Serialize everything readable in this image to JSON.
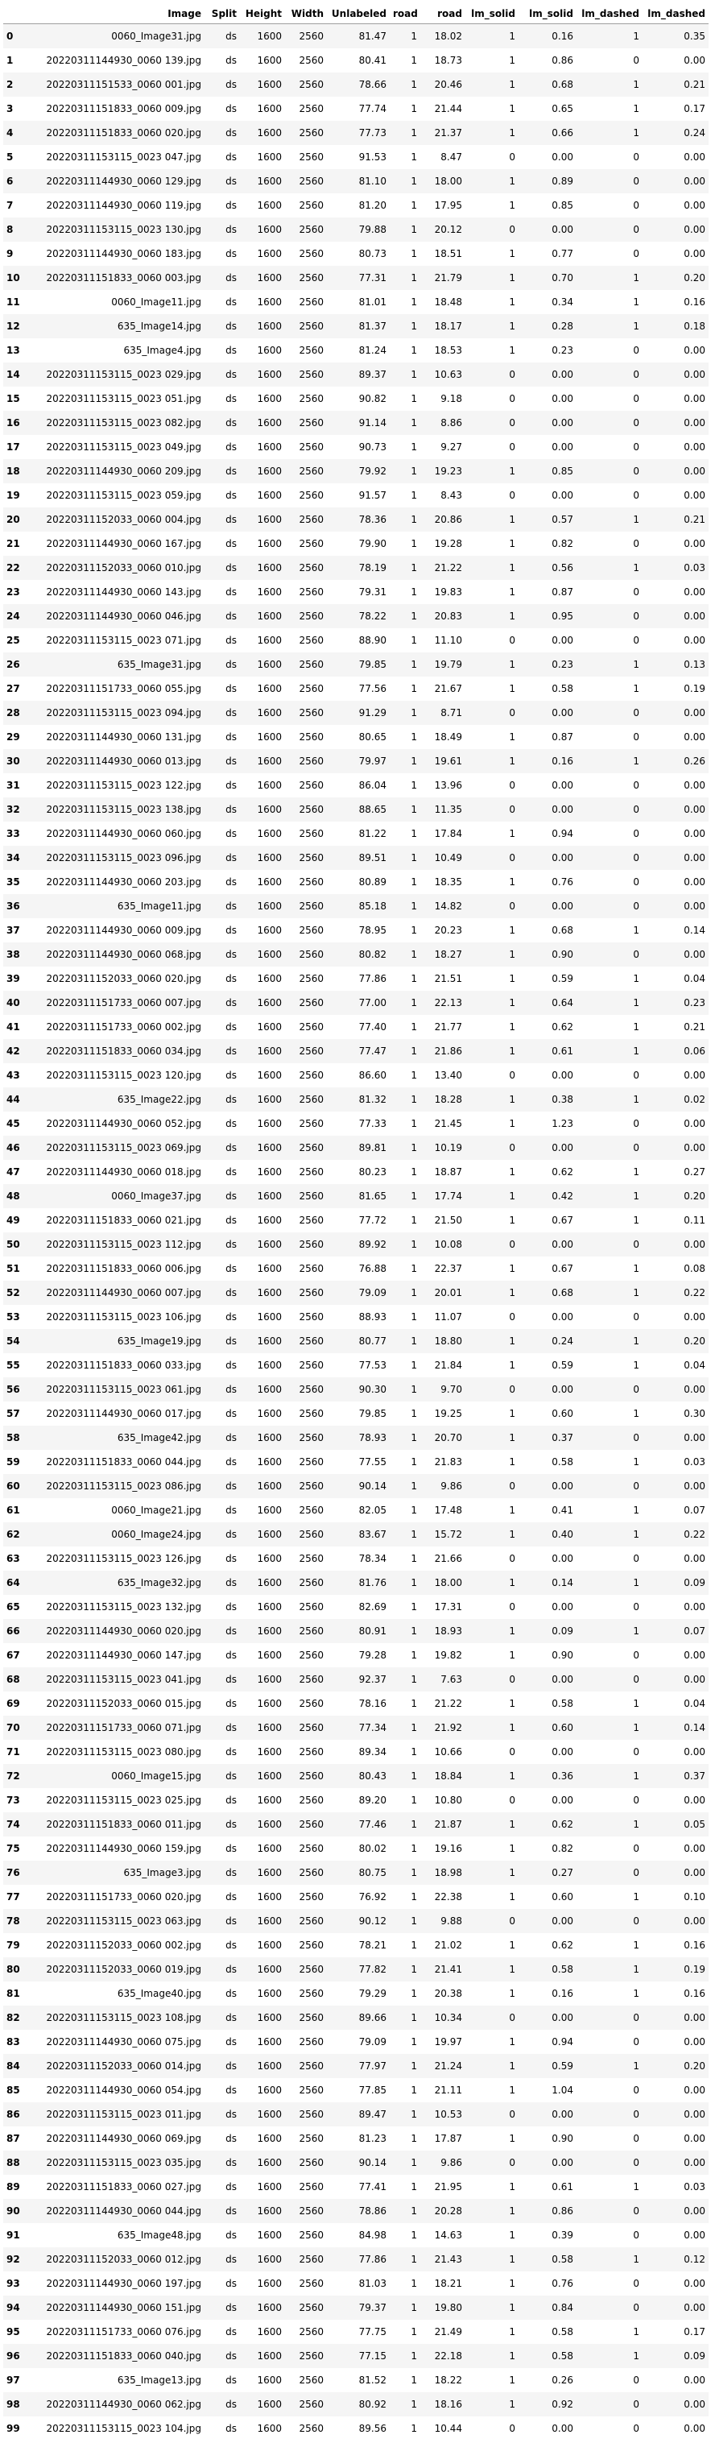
{
  "columns": [
    "",
    "Image",
    "Split",
    "Height",
    "Width",
    "Unlabeled",
    "road",
    "road",
    "lm_solid",
    "lm_solid",
    "lm_dashed",
    "lm_dashed"
  ],
  "rows": [
    [
      "0",
      "0060_Image31.jpg",
      "ds",
      "1600",
      "2560",
      "81.47",
      "1",
      "18.02",
      "1",
      "0.16",
      "1",
      "0.35"
    ],
    [
      "1",
      "20220311144930_0060 139.jpg",
      "ds",
      "1600",
      "2560",
      "80.41",
      "1",
      "18.73",
      "1",
      "0.86",
      "0",
      "0.00"
    ],
    [
      "2",
      "20220311151533_0060 001.jpg",
      "ds",
      "1600",
      "2560",
      "78.66",
      "1",
      "20.46",
      "1",
      "0.68",
      "1",
      "0.21"
    ],
    [
      "3",
      "20220311151833_0060 009.jpg",
      "ds",
      "1600",
      "2560",
      "77.74",
      "1",
      "21.44",
      "1",
      "0.65",
      "1",
      "0.17"
    ],
    [
      "4",
      "20220311151833_0060 020.jpg",
      "ds",
      "1600",
      "2560",
      "77.73",
      "1",
      "21.37",
      "1",
      "0.66",
      "1",
      "0.24"
    ],
    [
      "5",
      "20220311153115_0023 047.jpg",
      "ds",
      "1600",
      "2560",
      "91.53",
      "1",
      "8.47",
      "0",
      "0.00",
      "0",
      "0.00"
    ],
    [
      "6",
      "20220311144930_0060 129.jpg",
      "ds",
      "1600",
      "2560",
      "81.10",
      "1",
      "18.00",
      "1",
      "0.89",
      "0",
      "0.00"
    ],
    [
      "7",
      "20220311144930_0060 119.jpg",
      "ds",
      "1600",
      "2560",
      "81.20",
      "1",
      "17.95",
      "1",
      "0.85",
      "0",
      "0.00"
    ],
    [
      "8",
      "20220311153115_0023 130.jpg",
      "ds",
      "1600",
      "2560",
      "79.88",
      "1",
      "20.12",
      "0",
      "0.00",
      "0",
      "0.00"
    ],
    [
      "9",
      "20220311144930_0060 183.jpg",
      "ds",
      "1600",
      "2560",
      "80.73",
      "1",
      "18.51",
      "1",
      "0.77",
      "0",
      "0.00"
    ],
    [
      "10",
      "20220311151833_0060 003.jpg",
      "ds",
      "1600",
      "2560",
      "77.31",
      "1",
      "21.79",
      "1",
      "0.70",
      "1",
      "0.20"
    ],
    [
      "11",
      "0060_Image11.jpg",
      "ds",
      "1600",
      "2560",
      "81.01",
      "1",
      "18.48",
      "1",
      "0.34",
      "1",
      "0.16"
    ],
    [
      "12",
      "635_Image14.jpg",
      "ds",
      "1600",
      "2560",
      "81.37",
      "1",
      "18.17",
      "1",
      "0.28",
      "1",
      "0.18"
    ],
    [
      "13",
      "635_Image4.jpg",
      "ds",
      "1600",
      "2560",
      "81.24",
      "1",
      "18.53",
      "1",
      "0.23",
      "0",
      "0.00"
    ],
    [
      "14",
      "20220311153115_0023 029.jpg",
      "ds",
      "1600",
      "2560",
      "89.37",
      "1",
      "10.63",
      "0",
      "0.00",
      "0",
      "0.00"
    ],
    [
      "15",
      "20220311153115_0023 051.jpg",
      "ds",
      "1600",
      "2560",
      "90.82",
      "1",
      "9.18",
      "0",
      "0.00",
      "0",
      "0.00"
    ],
    [
      "16",
      "20220311153115_0023 082.jpg",
      "ds",
      "1600",
      "2560",
      "91.14",
      "1",
      "8.86",
      "0",
      "0.00",
      "0",
      "0.00"
    ],
    [
      "17",
      "20220311153115_0023 049.jpg",
      "ds",
      "1600",
      "2560",
      "90.73",
      "1",
      "9.27",
      "0",
      "0.00",
      "0",
      "0.00"
    ],
    [
      "18",
      "20220311144930_0060 209.jpg",
      "ds",
      "1600",
      "2560",
      "79.92",
      "1",
      "19.23",
      "1",
      "0.85",
      "0",
      "0.00"
    ],
    [
      "19",
      "20220311153115_0023 059.jpg",
      "ds",
      "1600",
      "2560",
      "91.57",
      "1",
      "8.43",
      "0",
      "0.00",
      "0",
      "0.00"
    ],
    [
      "20",
      "20220311152033_0060 004.jpg",
      "ds",
      "1600",
      "2560",
      "78.36",
      "1",
      "20.86",
      "1",
      "0.57",
      "1",
      "0.21"
    ],
    [
      "21",
      "20220311144930_0060 167.jpg",
      "ds",
      "1600",
      "2560",
      "79.90",
      "1",
      "19.28",
      "1",
      "0.82",
      "0",
      "0.00"
    ],
    [
      "22",
      "20220311152033_0060 010.jpg",
      "ds",
      "1600",
      "2560",
      "78.19",
      "1",
      "21.22",
      "1",
      "0.56",
      "1",
      "0.03"
    ],
    [
      "23",
      "20220311144930_0060 143.jpg",
      "ds",
      "1600",
      "2560",
      "79.31",
      "1",
      "19.83",
      "1",
      "0.87",
      "0",
      "0.00"
    ],
    [
      "24",
      "20220311144930_0060 046.jpg",
      "ds",
      "1600",
      "2560",
      "78.22",
      "1",
      "20.83",
      "1",
      "0.95",
      "0",
      "0.00"
    ],
    [
      "25",
      "20220311153115_0023 071.jpg",
      "ds",
      "1600",
      "2560",
      "88.90",
      "1",
      "11.10",
      "0",
      "0.00",
      "0",
      "0.00"
    ],
    [
      "26",
      "635_Image31.jpg",
      "ds",
      "1600",
      "2560",
      "79.85",
      "1",
      "19.79",
      "1",
      "0.23",
      "1",
      "0.13"
    ],
    [
      "27",
      "20220311151733_0060 055.jpg",
      "ds",
      "1600",
      "2560",
      "77.56",
      "1",
      "21.67",
      "1",
      "0.58",
      "1",
      "0.19"
    ],
    [
      "28",
      "20220311153115_0023 094.jpg",
      "ds",
      "1600",
      "2560",
      "91.29",
      "1",
      "8.71",
      "0",
      "0.00",
      "0",
      "0.00"
    ],
    [
      "29",
      "20220311144930_0060 131.jpg",
      "ds",
      "1600",
      "2560",
      "80.65",
      "1",
      "18.49",
      "1",
      "0.87",
      "0",
      "0.00"
    ],
    [
      "30",
      "20220311144930_0060 013.jpg",
      "ds",
      "1600",
      "2560",
      "79.97",
      "1",
      "19.61",
      "1",
      "0.16",
      "1",
      "0.26"
    ],
    [
      "31",
      "20220311153115_0023 122.jpg",
      "ds",
      "1600",
      "2560",
      "86.04",
      "1",
      "13.96",
      "0",
      "0.00",
      "0",
      "0.00"
    ],
    [
      "32",
      "20220311153115_0023 138.jpg",
      "ds",
      "1600",
      "2560",
      "88.65",
      "1",
      "11.35",
      "0",
      "0.00",
      "0",
      "0.00"
    ],
    [
      "33",
      "20220311144930_0060 060.jpg",
      "ds",
      "1600",
      "2560",
      "81.22",
      "1",
      "17.84",
      "1",
      "0.94",
      "0",
      "0.00"
    ],
    [
      "34",
      "20220311153115_0023 096.jpg",
      "ds",
      "1600",
      "2560",
      "89.51",
      "1",
      "10.49",
      "0",
      "0.00",
      "0",
      "0.00"
    ],
    [
      "35",
      "20220311144930_0060 203.jpg",
      "ds",
      "1600",
      "2560",
      "80.89",
      "1",
      "18.35",
      "1",
      "0.76",
      "0",
      "0.00"
    ],
    [
      "36",
      "635_Image11.jpg",
      "ds",
      "1600",
      "2560",
      "85.18",
      "1",
      "14.82",
      "0",
      "0.00",
      "0",
      "0.00"
    ],
    [
      "37",
      "20220311144930_0060 009.jpg",
      "ds",
      "1600",
      "2560",
      "78.95",
      "1",
      "20.23",
      "1",
      "0.68",
      "1",
      "0.14"
    ],
    [
      "38",
      "20220311144930_0060 068.jpg",
      "ds",
      "1600",
      "2560",
      "80.82",
      "1",
      "18.27",
      "1",
      "0.90",
      "0",
      "0.00"
    ],
    [
      "39",
      "20220311152033_0060 020.jpg",
      "ds",
      "1600",
      "2560",
      "77.86",
      "1",
      "21.51",
      "1",
      "0.59",
      "1",
      "0.04"
    ],
    [
      "40",
      "20220311151733_0060 007.jpg",
      "ds",
      "1600",
      "2560",
      "77.00",
      "1",
      "22.13",
      "1",
      "0.64",
      "1",
      "0.23"
    ],
    [
      "41",
      "20220311151733_0060 002.jpg",
      "ds",
      "1600",
      "2560",
      "77.40",
      "1",
      "21.77",
      "1",
      "0.62",
      "1",
      "0.21"
    ],
    [
      "42",
      "20220311151833_0060 034.jpg",
      "ds",
      "1600",
      "2560",
      "77.47",
      "1",
      "21.86",
      "1",
      "0.61",
      "1",
      "0.06"
    ],
    [
      "43",
      "20220311153115_0023 120.jpg",
      "ds",
      "1600",
      "2560",
      "86.60",
      "1",
      "13.40",
      "0",
      "0.00",
      "0",
      "0.00"
    ],
    [
      "44",
      "635_Image22.jpg",
      "ds",
      "1600",
      "2560",
      "81.32",
      "1",
      "18.28",
      "1",
      "0.38",
      "1",
      "0.02"
    ],
    [
      "45",
      "20220311144930_0060 052.jpg",
      "ds",
      "1600",
      "2560",
      "77.33",
      "1",
      "21.45",
      "1",
      "1.23",
      "0",
      "0.00"
    ],
    [
      "46",
      "20220311153115_0023 069.jpg",
      "ds",
      "1600",
      "2560",
      "89.81",
      "1",
      "10.19",
      "0",
      "0.00",
      "0",
      "0.00"
    ],
    [
      "47",
      "20220311144930_0060 018.jpg",
      "ds",
      "1600",
      "2560",
      "80.23",
      "1",
      "18.87",
      "1",
      "0.62",
      "1",
      "0.27"
    ],
    [
      "48",
      "0060_Image37.jpg",
      "ds",
      "1600",
      "2560",
      "81.65",
      "1",
      "17.74",
      "1",
      "0.42",
      "1",
      "0.20"
    ],
    [
      "49",
      "20220311151833_0060 021.jpg",
      "ds",
      "1600",
      "2560",
      "77.72",
      "1",
      "21.50",
      "1",
      "0.67",
      "1",
      "0.11"
    ],
    [
      "50",
      "20220311153115_0023 112.jpg",
      "ds",
      "1600",
      "2560",
      "89.92",
      "1",
      "10.08",
      "0",
      "0.00",
      "0",
      "0.00"
    ],
    [
      "51",
      "20220311151833_0060 006.jpg",
      "ds",
      "1600",
      "2560",
      "76.88",
      "1",
      "22.37",
      "1",
      "0.67",
      "1",
      "0.08"
    ],
    [
      "52",
      "20220311144930_0060 007.jpg",
      "ds",
      "1600",
      "2560",
      "79.09",
      "1",
      "20.01",
      "1",
      "0.68",
      "1",
      "0.22"
    ],
    [
      "53",
      "20220311153115_0023 106.jpg",
      "ds",
      "1600",
      "2560",
      "88.93",
      "1",
      "11.07",
      "0",
      "0.00",
      "0",
      "0.00"
    ],
    [
      "54",
      "635_Image19.jpg",
      "ds",
      "1600",
      "2560",
      "80.77",
      "1",
      "18.80",
      "1",
      "0.24",
      "1",
      "0.20"
    ],
    [
      "55",
      "20220311151833_0060 033.jpg",
      "ds",
      "1600",
      "2560",
      "77.53",
      "1",
      "21.84",
      "1",
      "0.59",
      "1",
      "0.04"
    ],
    [
      "56",
      "20220311153115_0023 061.jpg",
      "ds",
      "1600",
      "2560",
      "90.30",
      "1",
      "9.70",
      "0",
      "0.00",
      "0",
      "0.00"
    ],
    [
      "57",
      "20220311144930_0060 017.jpg",
      "ds",
      "1600",
      "2560",
      "79.85",
      "1",
      "19.25",
      "1",
      "0.60",
      "1",
      "0.30"
    ],
    [
      "58",
      "635_Image42.jpg",
      "ds",
      "1600",
      "2560",
      "78.93",
      "1",
      "20.70",
      "1",
      "0.37",
      "0",
      "0.00"
    ],
    [
      "59",
      "20220311151833_0060 044.jpg",
      "ds",
      "1600",
      "2560",
      "77.55",
      "1",
      "21.83",
      "1",
      "0.58",
      "1",
      "0.03"
    ],
    [
      "60",
      "20220311153115_0023 086.jpg",
      "ds",
      "1600",
      "2560",
      "90.14",
      "1",
      "9.86",
      "0",
      "0.00",
      "0",
      "0.00"
    ],
    [
      "61",
      "0060_Image21.jpg",
      "ds",
      "1600",
      "2560",
      "82.05",
      "1",
      "17.48",
      "1",
      "0.41",
      "1",
      "0.07"
    ],
    [
      "62",
      "0060_Image24.jpg",
      "ds",
      "1600",
      "2560",
      "83.67",
      "1",
      "15.72",
      "1",
      "0.40",
      "1",
      "0.22"
    ],
    [
      "63",
      "20220311153115_0023 126.jpg",
      "ds",
      "1600",
      "2560",
      "78.34",
      "1",
      "21.66",
      "0",
      "0.00",
      "0",
      "0.00"
    ],
    [
      "64",
      "635_Image32.jpg",
      "ds",
      "1600",
      "2560",
      "81.76",
      "1",
      "18.00",
      "1",
      "0.14",
      "1",
      "0.09"
    ],
    [
      "65",
      "20220311153115_0023 132.jpg",
      "ds",
      "1600",
      "2560",
      "82.69",
      "1",
      "17.31",
      "0",
      "0.00",
      "0",
      "0.00"
    ],
    [
      "66",
      "20220311144930_0060 020.jpg",
      "ds",
      "1600",
      "2560",
      "80.91",
      "1",
      "18.93",
      "1",
      "0.09",
      "1",
      "0.07"
    ],
    [
      "67",
      "20220311144930_0060 147.jpg",
      "ds",
      "1600",
      "2560",
      "79.28",
      "1",
      "19.82",
      "1",
      "0.90",
      "0",
      "0.00"
    ],
    [
      "68",
      "20220311153115_0023 041.jpg",
      "ds",
      "1600",
      "2560",
      "92.37",
      "1",
      "7.63",
      "0",
      "0.00",
      "0",
      "0.00"
    ],
    [
      "69",
      "20220311152033_0060 015.jpg",
      "ds",
      "1600",
      "2560",
      "78.16",
      "1",
      "21.22",
      "1",
      "0.58",
      "1",
      "0.04"
    ],
    [
      "70",
      "20220311151733_0060 071.jpg",
      "ds",
      "1600",
      "2560",
      "77.34",
      "1",
      "21.92",
      "1",
      "0.60",
      "1",
      "0.14"
    ],
    [
      "71",
      "20220311153115_0023 080.jpg",
      "ds",
      "1600",
      "2560",
      "89.34",
      "1",
      "10.66",
      "0",
      "0.00",
      "0",
      "0.00"
    ],
    [
      "72",
      "0060_Image15.jpg",
      "ds",
      "1600",
      "2560",
      "80.43",
      "1",
      "18.84",
      "1",
      "0.36",
      "1",
      "0.37"
    ],
    [
      "73",
      "20220311153115_0023 025.jpg",
      "ds",
      "1600",
      "2560",
      "89.20",
      "1",
      "10.80",
      "0",
      "0.00",
      "0",
      "0.00"
    ],
    [
      "74",
      "20220311151833_0060 011.jpg",
      "ds",
      "1600",
      "2560",
      "77.46",
      "1",
      "21.87",
      "1",
      "0.62",
      "1",
      "0.05"
    ],
    [
      "75",
      "20220311144930_0060 159.jpg",
      "ds",
      "1600",
      "2560",
      "80.02",
      "1",
      "19.16",
      "1",
      "0.82",
      "0",
      "0.00"
    ],
    [
      "76",
      "635_Image3.jpg",
      "ds",
      "1600",
      "2560",
      "80.75",
      "1",
      "18.98",
      "1",
      "0.27",
      "0",
      "0.00"
    ],
    [
      "77",
      "20220311151733_0060 020.jpg",
      "ds",
      "1600",
      "2560",
      "76.92",
      "1",
      "22.38",
      "1",
      "0.60",
      "1",
      "0.10"
    ],
    [
      "78",
      "20220311153115_0023 063.jpg",
      "ds",
      "1600",
      "2560",
      "90.12",
      "1",
      "9.88",
      "0",
      "0.00",
      "0",
      "0.00"
    ],
    [
      "79",
      "20220311152033_0060 002.jpg",
      "ds",
      "1600",
      "2560",
      "78.21",
      "1",
      "21.02",
      "1",
      "0.62",
      "1",
      "0.16"
    ],
    [
      "80",
      "20220311152033_0060 019.jpg",
      "ds",
      "1600",
      "2560",
      "77.82",
      "1",
      "21.41",
      "1",
      "0.58",
      "1",
      "0.19"
    ],
    [
      "81",
      "635_Image40.jpg",
      "ds",
      "1600",
      "2560",
      "79.29",
      "1",
      "20.38",
      "1",
      "0.16",
      "1",
      "0.16"
    ],
    [
      "82",
      "20220311153115_0023 108.jpg",
      "ds",
      "1600",
      "2560",
      "89.66",
      "1",
      "10.34",
      "0",
      "0.00",
      "0",
      "0.00"
    ],
    [
      "83",
      "20220311144930_0060 075.jpg",
      "ds",
      "1600",
      "2560",
      "79.09",
      "1",
      "19.97",
      "1",
      "0.94",
      "0",
      "0.00"
    ],
    [
      "84",
      "20220311152033_0060 014.jpg",
      "ds",
      "1600",
      "2560",
      "77.97",
      "1",
      "21.24",
      "1",
      "0.59",
      "1",
      "0.20"
    ],
    [
      "85",
      "20220311144930_0060 054.jpg",
      "ds",
      "1600",
      "2560",
      "77.85",
      "1",
      "21.11",
      "1",
      "1.04",
      "0",
      "0.00"
    ],
    [
      "86",
      "20220311153115_0023 011.jpg",
      "ds",
      "1600",
      "2560",
      "89.47",
      "1",
      "10.53",
      "0",
      "0.00",
      "0",
      "0.00"
    ],
    [
      "87",
      "20220311144930_0060 069.jpg",
      "ds",
      "1600",
      "2560",
      "81.23",
      "1",
      "17.87",
      "1",
      "0.90",
      "0",
      "0.00"
    ],
    [
      "88",
      "20220311153115_0023 035.jpg",
      "ds",
      "1600",
      "2560",
      "90.14",
      "1",
      "9.86",
      "0",
      "0.00",
      "0",
      "0.00"
    ],
    [
      "89",
      "20220311151833_0060 027.jpg",
      "ds",
      "1600",
      "2560",
      "77.41",
      "1",
      "21.95",
      "1",
      "0.61",
      "1",
      "0.03"
    ],
    [
      "90",
      "20220311144930_0060 044.jpg",
      "ds",
      "1600",
      "2560",
      "78.86",
      "1",
      "20.28",
      "1",
      "0.86",
      "0",
      "0.00"
    ],
    [
      "91",
      "635_Image48.jpg",
      "ds",
      "1600",
      "2560",
      "84.98",
      "1",
      "14.63",
      "1",
      "0.39",
      "0",
      "0.00"
    ],
    [
      "92",
      "20220311152033_0060 012.jpg",
      "ds",
      "1600",
      "2560",
      "77.86",
      "1",
      "21.43",
      "1",
      "0.58",
      "1",
      "0.12"
    ],
    [
      "93",
      "20220311144930_0060 197.jpg",
      "ds",
      "1600",
      "2560",
      "81.03",
      "1",
      "18.21",
      "1",
      "0.76",
      "0",
      "0.00"
    ],
    [
      "94",
      "20220311144930_0060 151.jpg",
      "ds",
      "1600",
      "2560",
      "79.37",
      "1",
      "19.80",
      "1",
      "0.84",
      "0",
      "0.00"
    ],
    [
      "95",
      "20220311151733_0060 076.jpg",
      "ds",
      "1600",
      "2560",
      "77.75",
      "1",
      "21.49",
      "1",
      "0.58",
      "1",
      "0.17"
    ],
    [
      "96",
      "20220311151833_0060 040.jpg",
      "ds",
      "1600",
      "2560",
      "77.15",
      "1",
      "22.18",
      "1",
      "0.58",
      "1",
      "0.09"
    ],
    [
      "97",
      "635_Image13.jpg",
      "ds",
      "1600",
      "2560",
      "81.52",
      "1",
      "18.22",
      "1",
      "0.26",
      "0",
      "0.00"
    ],
    [
      "98",
      "20220311144930_0060 062.jpg",
      "ds",
      "1600",
      "2560",
      "80.92",
      "1",
      "18.16",
      "1",
      "0.92",
      "0",
      "0.00"
    ],
    [
      "99",
      "20220311153115_0023 104.jpg",
      "ds",
      "1600",
      "2560",
      "89.56",
      "1",
      "10.44",
      "0",
      "0.00",
      "0",
      "0.00"
    ]
  ]
}
